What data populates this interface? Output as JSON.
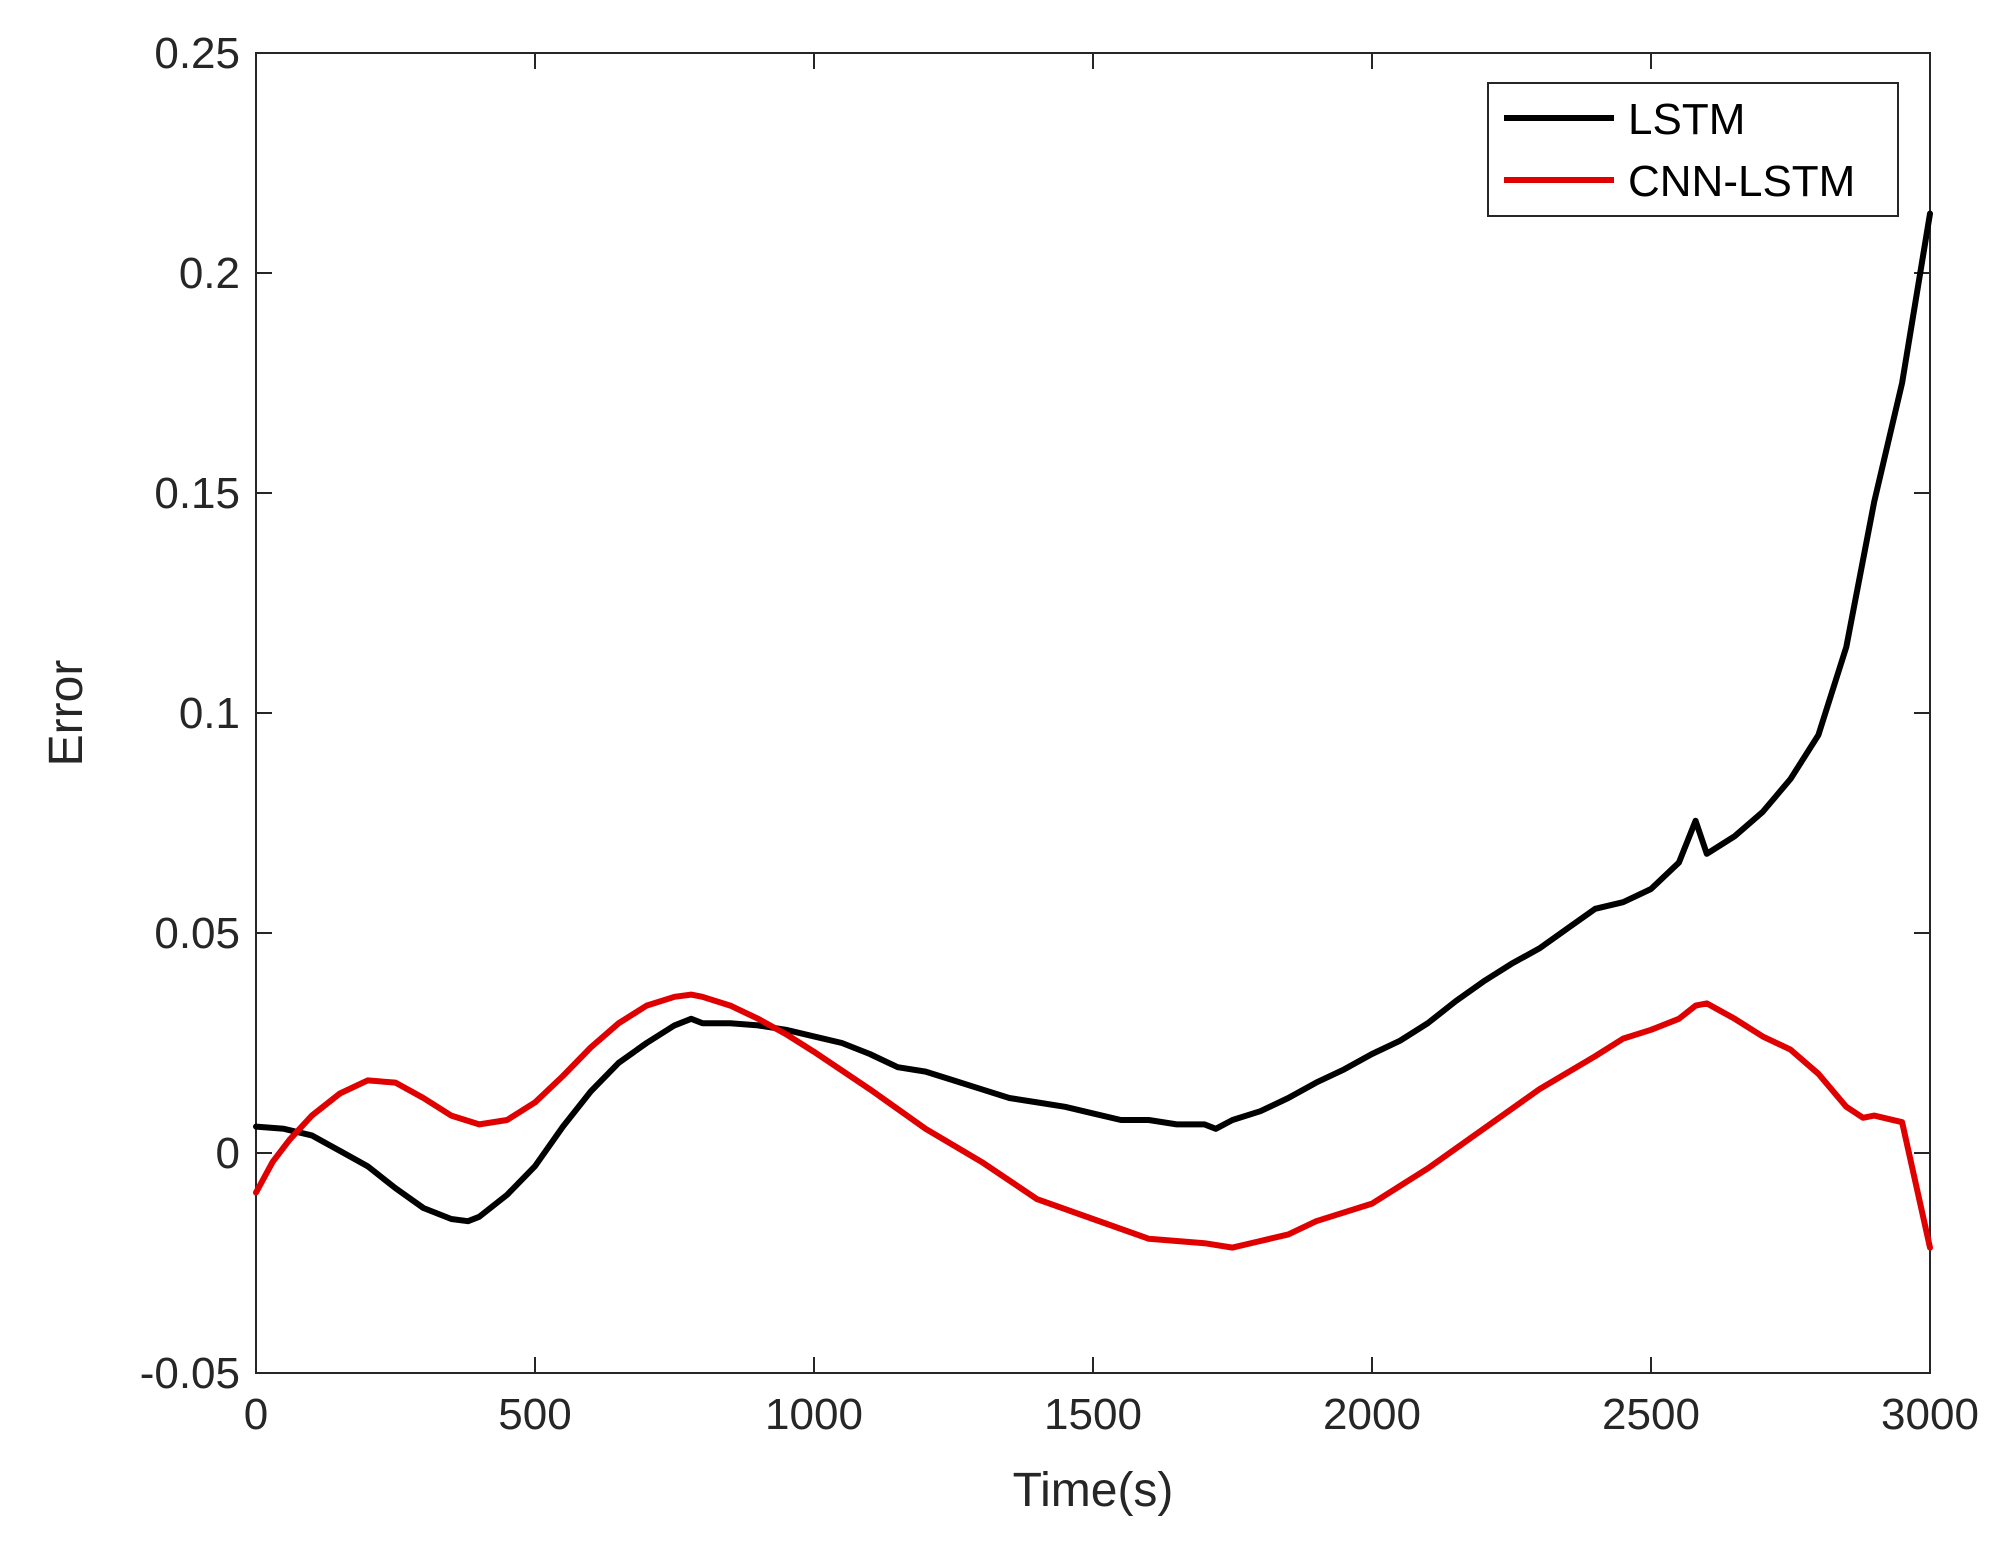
{
  "chart_data": {
    "type": "line",
    "title": "",
    "xlabel": "Time(s)",
    "ylabel": "Error",
    "xlim": [
      0,
      3000
    ],
    "ylim": [
      -0.05,
      0.25
    ],
    "x_ticks": [
      0,
      500,
      1000,
      1500,
      2000,
      2500,
      3000
    ],
    "x_tick_labels": [
      "0",
      "500",
      "1000",
      "1500",
      "2000",
      "2500",
      "3000"
    ],
    "y_ticks": [
      -0.05,
      0,
      0.05,
      0.1,
      0.15,
      0.2,
      0.25
    ],
    "y_tick_labels": [
      "-0.05",
      "0",
      "0.05",
      "0.1",
      "0.15",
      "0.2",
      "0.25"
    ],
    "grid": false,
    "legend_position": "top-right",
    "series": [
      {
        "name": "LSTM",
        "color": "#000000",
        "x": [
          0,
          50,
          100,
          150,
          200,
          250,
          300,
          350,
          380,
          400,
          450,
          500,
          550,
          600,
          650,
          700,
          750,
          780,
          800,
          850,
          900,
          950,
          1000,
          1050,
          1100,
          1150,
          1200,
          1250,
          1300,
          1350,
          1400,
          1450,
          1500,
          1550,
          1600,
          1650,
          1700,
          1720,
          1750,
          1800,
          1850,
          1900,
          1950,
          2000,
          2050,
          2100,
          2150,
          2200,
          2250,
          2300,
          2350,
          2400,
          2450,
          2500,
          2550,
          2580,
          2600,
          2650,
          2700,
          2750,
          2800,
          2850,
          2900,
          2950,
          3000
        ],
        "y": [
          0.006,
          0.0055,
          0.004,
          0.0005,
          -0.003,
          -0.008,
          -0.0125,
          -0.015,
          -0.0155,
          -0.0145,
          -0.0095,
          -0.003,
          0.006,
          0.014,
          0.0205,
          0.025,
          0.029,
          0.0305,
          0.0295,
          0.0295,
          0.029,
          0.028,
          0.0265,
          0.025,
          0.0225,
          0.0195,
          0.0185,
          0.0165,
          0.0145,
          0.0125,
          0.0115,
          0.0105,
          0.009,
          0.0075,
          0.0075,
          0.0065,
          0.0065,
          0.0055,
          0.0075,
          0.0095,
          0.0125,
          0.016,
          0.019,
          0.0225,
          0.0255,
          0.0295,
          0.0345,
          0.039,
          0.043,
          0.0465,
          0.051,
          0.0555,
          0.057,
          0.06,
          0.066,
          0.0755,
          0.068,
          0.072,
          0.0775,
          0.085,
          0.095,
          0.115,
          0.148,
          0.175,
          0.2135
        ]
      },
      {
        "name": "CNN-LSTM",
        "color": "#e00000",
        "x": [
          0,
          30,
          60,
          100,
          150,
          200,
          250,
          300,
          350,
          400,
          450,
          500,
          550,
          600,
          650,
          700,
          750,
          780,
          800,
          850,
          900,
          950,
          1000,
          1100,
          1200,
          1300,
          1400,
          1500,
          1600,
          1700,
          1750,
          1800,
          1850,
          1900,
          2000,
          2100,
          2200,
          2300,
          2400,
          2450,
          2500,
          2550,
          2580,
          2600,
          2650,
          2700,
          2750,
          2800,
          2850,
          2880,
          2900,
          2950,
          3000
        ],
        "y": [
          -0.009,
          -0.002,
          0.003,
          0.0085,
          0.0135,
          0.0165,
          0.016,
          0.0125,
          0.0085,
          0.0065,
          0.0075,
          0.0115,
          0.0175,
          0.024,
          0.0295,
          0.0335,
          0.0355,
          0.036,
          0.0355,
          0.0335,
          0.0305,
          0.027,
          0.023,
          0.0145,
          0.0055,
          -0.002,
          -0.0105,
          -0.015,
          -0.0195,
          -0.0205,
          -0.0215,
          -0.02,
          -0.0185,
          -0.0155,
          -0.0115,
          -0.0035,
          0.0055,
          0.0145,
          0.022,
          0.026,
          0.028,
          0.0305,
          0.0335,
          0.034,
          0.0305,
          0.0265,
          0.0235,
          0.018,
          0.0105,
          0.008,
          0.0085,
          0.007,
          -0.0215
        ]
      }
    ]
  }
}
